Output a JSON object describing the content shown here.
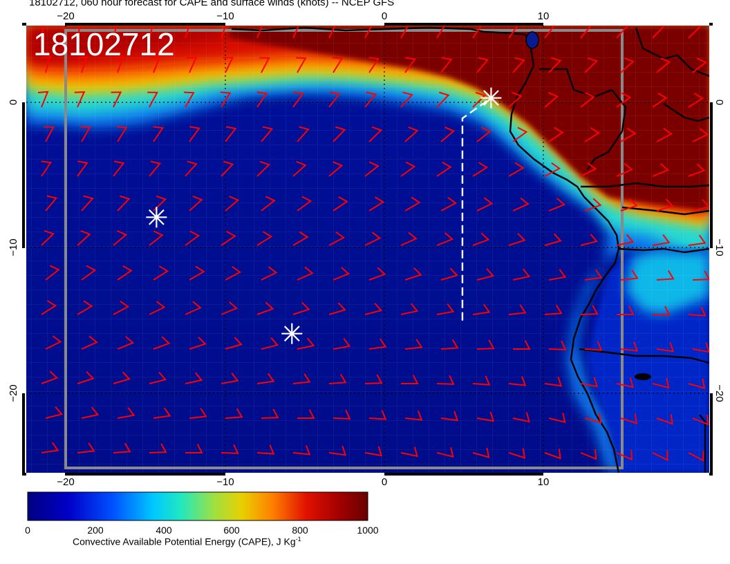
{
  "title": "18102712, 060 hour forecast for CAPE and surface winds (knots) -- NCEP GFS",
  "stamp": "18102712",
  "axes": {
    "lon_ticks": [
      "−20",
      "−10",
      "0",
      "10"
    ],
    "lat_ticks_left": [
      "0",
      "−10",
      "−20"
    ],
    "lat_ticks_right": [
      "0",
      "−10",
      "−20"
    ]
  },
  "colorbar": {
    "title": "Convective Available Potential Energy (CAPE), J Kg",
    "title_superscript": "-1",
    "labels": [
      "0",
      "200",
      "400",
      "600",
      "800",
      "1000"
    ],
    "min": 0,
    "max": 1000,
    "colors": [
      "#00008f",
      "#0050ff",
      "#00e0e0",
      "#d8d800",
      "#e01000",
      "#7a0000"
    ]
  },
  "map": {
    "lon_range": [
      -22.5,
      20.5
    ],
    "lat_range": [
      -25.5,
      5
    ],
    "graticule_lons": [
      -20,
      -10,
      0,
      10
    ],
    "graticule_lats": [
      0,
      -10,
      -20
    ],
    "domain_box": {
      "lon": [
        -20,
        15
      ],
      "lat": [
        -25,
        5
      ]
    },
    "markers": [
      {
        "name": "asterisk-marker-north",
        "lon": 6.7,
        "lat": 0.3
      },
      {
        "name": "asterisk-marker-west",
        "lon": -14.3,
        "lat": -7.9
      },
      {
        "name": "asterisk-marker-south",
        "lon": -5.8,
        "lat": -15.9
      }
    ],
    "flight_track": [
      [
        4.9,
        -15
      ],
      [
        4.9,
        -1.1
      ],
      [
        6.7,
        0.3
      ]
    ],
    "wind_barb_color": "#ff0000"
  }
}
